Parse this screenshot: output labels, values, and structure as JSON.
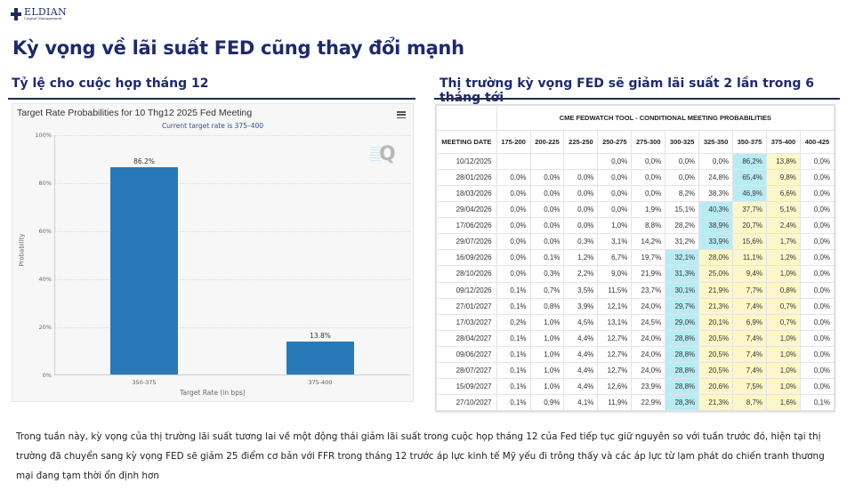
{
  "logo": {
    "name": "ELDIAN",
    "subtitle": "Capital Management"
  },
  "page_title": "Kỳ vọng về lãi suất FED cũng thay đổi mạnh",
  "left_section": {
    "title": "Tỷ lệ cho cuộc họp tháng 12",
    "chart": {
      "title": "Target Rate Probabilities for 10 Thg12 2025 Fed Meeting",
      "subtitle": "Current target rate is 375–400",
      "menu_icon": "hamburger-menu-icon",
      "watermark_icon": "q-logo-icon"
    }
  },
  "right_section": {
    "title": "Thị trường kỳ vọng FED sẽ giảm lãi suất 2 lần trong 6 tháng tới",
    "table": {
      "banner": "CME FEDWATCH TOOL - CONDITIONAL MEETING PROBABILITIES",
      "columns": [
        "MEETING DATE",
        "175-200",
        "200-225",
        "225-250",
        "250-275",
        "275-300",
        "300-325",
        "325-350",
        "350-375",
        "375-400",
        "400-425"
      ],
      "rows": [
        {
          "date": "10/12/2025",
          "values": [
            "",
            "",
            "",
            "0,0%",
            "0,0%",
            "0,0%",
            "0,0%",
            "86,2%",
            "13,8%",
            "0,0%"
          ],
          "hi": 7
        },
        {
          "date": "28/01/2026",
          "values": [
            "0,0%",
            "0,0%",
            "0,0%",
            "0,0%",
            "0,0%",
            "0,0%",
            "24,8%",
            "65,4%",
            "9,8%",
            "0,0%"
          ],
          "hi": 7
        },
        {
          "date": "18/03/2026",
          "values": [
            "0,0%",
            "0,0%",
            "0,0%",
            "0,0%",
            "0,0%",
            "8,2%",
            "38,3%",
            "46,9%",
            "6,6%",
            "0,0%"
          ],
          "hi": 7
        },
        {
          "date": "29/04/2026",
          "values": [
            "0,0%",
            "0,0%",
            "0,0%",
            "0,0%",
            "1,9%",
            "15,1%",
            "40,3%",
            "37,7%",
            "5,1%",
            "0,0%"
          ],
          "hi": 6
        },
        {
          "date": "17/06/2026",
          "values": [
            "0,0%",
            "0,0%",
            "0,0%",
            "1,0%",
            "8,8%",
            "28,2%",
            "38,9%",
            "20,7%",
            "2,4%",
            "0,0%"
          ],
          "hi": 6
        },
        {
          "date": "29/07/2026",
          "values": [
            "0,0%",
            "0,0%",
            "0,3%",
            "3,1%",
            "14,2%",
            "31,2%",
            "33,9%",
            "15,6%",
            "1,7%",
            "0,0%"
          ],
          "hi": 6
        },
        {
          "date": "16/09/2026",
          "values": [
            "0,0%",
            "0,1%",
            "1,2%",
            "6,7%",
            "19,7%",
            "32,1%",
            "28,0%",
            "11,1%",
            "1,2%",
            "0,0%"
          ],
          "hi": 5
        },
        {
          "date": "28/10/2026",
          "values": [
            "0,0%",
            "0,3%",
            "2,2%",
            "9,0%",
            "21,9%",
            "31,3%",
            "25,0%",
            "9,4%",
            "1,0%",
            "0,0%"
          ],
          "hi": 5
        },
        {
          "date": "09/12/2026",
          "values": [
            "0,1%",
            "0,7%",
            "3,5%",
            "11,5%",
            "23,7%",
            "30,1%",
            "21,9%",
            "7,7%",
            "0,8%",
            "0,0%"
          ],
          "hi": 5
        },
        {
          "date": "27/01/2027",
          "values": [
            "0,1%",
            "0,8%",
            "3,9%",
            "12,1%",
            "24,0%",
            "29,7%",
            "21,3%",
            "7,4%",
            "0,7%",
            "0,0%"
          ],
          "hi": 5
        },
        {
          "date": "17/03/2027",
          "values": [
            "0,2%",
            "1,0%",
            "4,5%",
            "13,1%",
            "24,5%",
            "29,0%",
            "20,1%",
            "6,9%",
            "0,7%",
            "0,0%"
          ],
          "hi": 5
        },
        {
          "date": "28/04/2027",
          "values": [
            "0,1%",
            "1,0%",
            "4,4%",
            "12,7%",
            "24,0%",
            "28,8%",
            "20,5%",
            "7,4%",
            "1,0%",
            "0,0%"
          ],
          "hi": 5
        },
        {
          "date": "09/06/2027",
          "values": [
            "0,1%",
            "1,0%",
            "4,4%",
            "12,7%",
            "24,0%",
            "28,8%",
            "20,5%",
            "7,4%",
            "1,0%",
            "0,0%"
          ],
          "hi": 5
        },
        {
          "date": "28/07/2027",
          "values": [
            "0,1%",
            "1,0%",
            "4,4%",
            "12,7%",
            "24,0%",
            "28,8%",
            "20,5%",
            "7,4%",
            "1,0%",
            "0,0%"
          ],
          "hi": 5
        },
        {
          "date": "15/09/2027",
          "values": [
            "0,1%",
            "1,0%",
            "4,4%",
            "12,6%",
            "23,9%",
            "28,8%",
            "20,6%",
            "7,5%",
            "1,0%",
            "0,0%"
          ],
          "hi": 5
        },
        {
          "date": "27/10/2027",
          "values": [
            "0,1%",
            "0,9%",
            "4,1%",
            "11,9%",
            "22,9%",
            "28,3%",
            "21,3%",
            "8,7%",
            "1,6%",
            "0,1%"
          ],
          "hi": 5
        }
      ]
    }
  },
  "paragraph": "Trong tuần này, kỳ vọng của thị trường lãi suất tương lai về một động thái giảm lãi suất trong cuộc họp tháng 12 của Fed tiếp tục giữ nguyên so với tuần trước đó, hiện tại thị trường đã chuyển sang kỳ vọng FED sẽ giảm 25 điểm cơ bản với FFR trong tháng 12 trước áp lực kinh tế Mỹ yếu đi trông thấy và các áp lực từ lạm phát do chiến tranh thương mại đang tạm thời ổn định hơn",
  "colors": {
    "title": "#1e2a6a",
    "bar": "#2879b7",
    "highlight_max": "#b9ebf5",
    "highlight_yellow": "#fbf7c9"
  },
  "chart_data": {
    "type": "bar",
    "title": "Target Rate Probabilities for 10 Thg12 2025 Fed Meeting",
    "subtitle": "Current target rate is 375–400",
    "categories": [
      "350-375",
      "375-400"
    ],
    "values": [
      86.2,
      13.8
    ],
    "value_labels": [
      "86.2%",
      "13.8%"
    ],
    "xlabel": "Target Rate (in bps)",
    "ylabel": "Probability",
    "ylim": [
      0,
      100
    ],
    "yticks": [
      "0%",
      "20%",
      "40%",
      "60%",
      "80%",
      "100%"
    ],
    "grid": true,
    "legend": null
  }
}
